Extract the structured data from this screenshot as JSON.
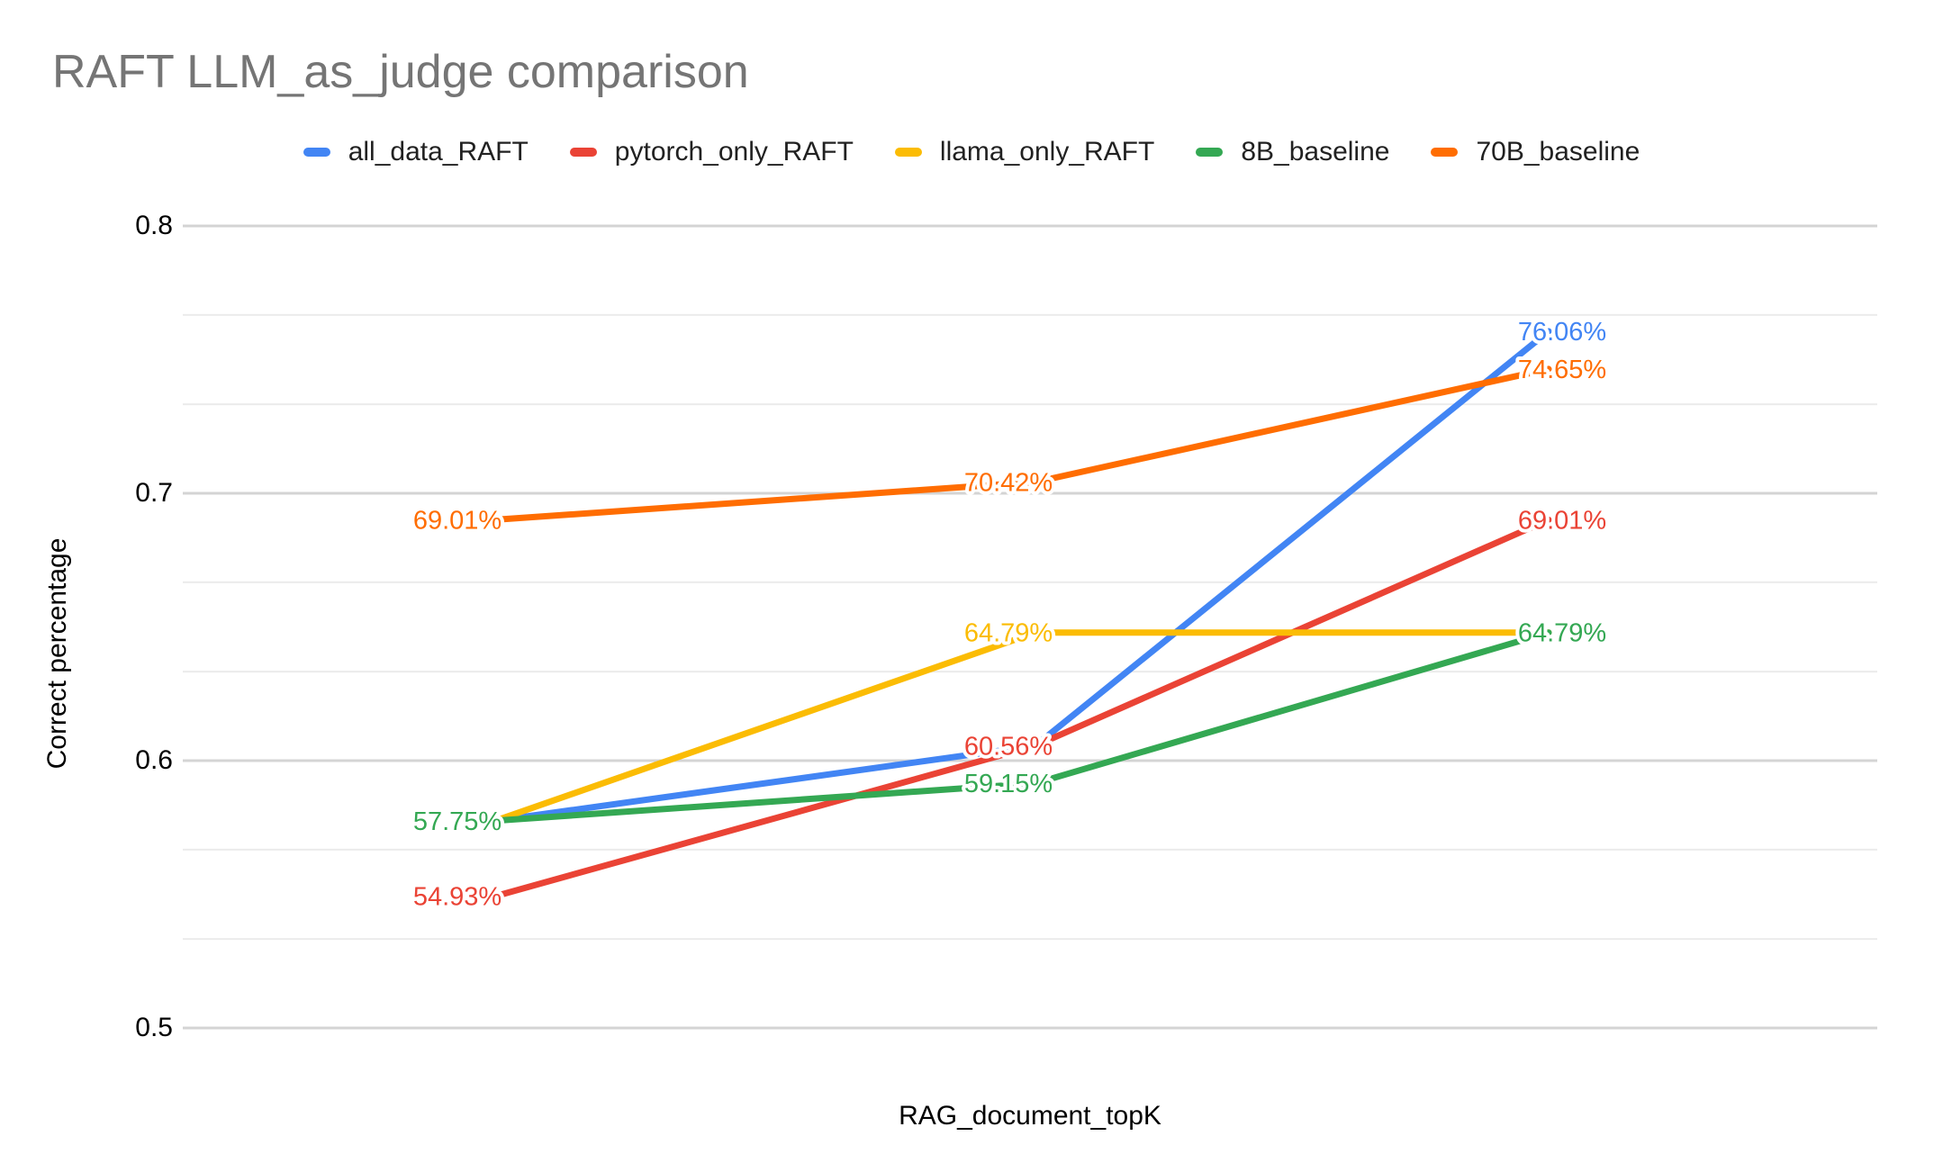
{
  "chart": {
    "title": "RAFT LLM_as_judge comparison",
    "y_axis_title": "Correct percentage",
    "x_axis_title": "RAG_document_topK",
    "y_tick_labels": [
      "0.8",
      "0.7",
      "0.6",
      "0.5"
    ],
    "colors": {
      "background": "#ffffff",
      "title_text": "#757575",
      "axis_text": "#000000",
      "legend_text": "#212121",
      "gridline_major": "#d4d4d4",
      "gridline_minor": "#ebebeb",
      "label_halo": "#ffffff"
    }
  },
  "chart_data": {
    "type": "line",
    "title": "RAFT LLM_as_judge comparison",
    "xlabel": "RAG_document_topK",
    "ylabel": "Correct percentage",
    "x_points": 3,
    "x_tick_labels": [
      "",
      "",
      ""
    ],
    "ylim": [
      0.5,
      0.8333
    ],
    "y_major_ticks": [
      0.8,
      0.7,
      0.6,
      0.5
    ],
    "y_minor_ticks": [
      0.7667,
      0.7333,
      0.6667,
      0.6333,
      0.5667,
      0.5333
    ],
    "grid": "horizontal, major + minor",
    "legend_position": "top",
    "series": [
      {
        "name": "all_data_RAFT",
        "color": "#4285F4",
        "values": [
          0.5775,
          0.6056,
          0.7606
        ],
        "point_labels": [
          null,
          null,
          "76.06%"
        ]
      },
      {
        "name": "pytorch_only_RAFT",
        "color": "#EA4335",
        "values": [
          0.5493,
          0.6056,
          0.6901
        ],
        "point_labels": [
          "54.93%",
          "60.56%",
          "69.01%"
        ]
      },
      {
        "name": "llama_only_RAFT",
        "color": "#FBBC04",
        "values": [
          0.5775,
          0.6479,
          0.6479
        ],
        "point_labels": [
          null,
          "64.79%",
          null
        ]
      },
      {
        "name": "8B_baseline",
        "color": "#34A853",
        "values": [
          0.5775,
          0.5915,
          0.6479
        ],
        "point_labels": [
          "57.75%",
          "59.15%",
          "64.79%"
        ]
      },
      {
        "name": "70B_baseline",
        "color": "#FF6D01",
        "values": [
          0.6901,
          0.7042,
          0.7465
        ],
        "point_labels": [
          "69.01%",
          "70.42%",
          "74.65%"
        ]
      }
    ]
  }
}
